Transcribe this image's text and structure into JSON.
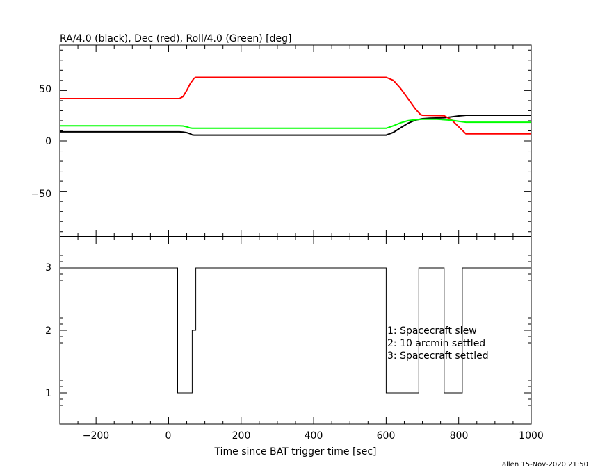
{
  "chart_data": [
    {
      "type": "line",
      "title": "RA/4.0 (black), Dec (red), Roll/4.0 (Green) [deg]",
      "xlim": [
        -300,
        1000
      ],
      "ylim": [
        -95,
        95
      ],
      "yticks": [
        "50",
        "0",
        "−50"
      ],
      "grid": false,
      "series": [
        {
          "color": "#000000",
          "x": [
            -300,
            30,
            40,
            50,
            60,
            65,
            70,
            360,
            600,
            620,
            640,
            660,
            680,
            700,
            720,
            760,
            780,
            800,
            820,
            1000
          ],
          "y": [
            9,
            9,
            8.8,
            8.2,
            7,
            6,
            5.8,
            5.8,
            5.8,
            8.5,
            13,
            17.5,
            20.5,
            22,
            22.5,
            23,
            23.8,
            24.8,
            25.5,
            25.5
          ]
        },
        {
          "color": "#ff0000",
          "x": [
            -300,
            30,
            40,
            50,
            60,
            70,
            75,
            360,
            600,
            620,
            640,
            660,
            680,
            695,
            700,
            760,
            780,
            800,
            820,
            1000
          ],
          "y": [
            42,
            42,
            44,
            50,
            57,
            62,
            63,
            63,
            63,
            60,
            52,
            42,
            32,
            26,
            25.5,
            25,
            21,
            14,
            7,
            7
          ]
        },
        {
          "color": "#00ff00",
          "x": [
            -300,
            30,
            40,
            50,
            60,
            65,
            70,
            360,
            600,
            620,
            640,
            660,
            680,
            700,
            740,
            780,
            800,
            820,
            1000
          ],
          "y": [
            15,
            15,
            14.8,
            14,
            12.8,
            12.5,
            12.5,
            12.5,
            12.5,
            15,
            18,
            20,
            21,
            21.5,
            21.5,
            20.5,
            19.5,
            18.5,
            18.5
          ]
        }
      ]
    },
    {
      "type": "line",
      "xlabel": "Time since BAT trigger time [sec]",
      "xlim": [
        -300,
        1000
      ],
      "ylim": [
        0.5,
        3.5
      ],
      "xticks": [
        "−200",
        "0",
        "200",
        "400",
        "600",
        "800",
        "1000"
      ],
      "yticks": [
        "3",
        "2",
        "1"
      ],
      "series": [
        {
          "color": "#000000",
          "x": [
            -300,
            25,
            25,
            65,
            65,
            75,
            75,
            600,
            600,
            690,
            690,
            760,
            760,
            810,
            810,
            1000
          ],
          "y": [
            3,
            3,
            1,
            1,
            2,
            2,
            3,
            3,
            1,
            1,
            3,
            3,
            1,
            1,
            3,
            3
          ]
        }
      ],
      "annotations": [
        "1: Spacecraft slew",
        "2: 10 arcmin settled",
        "3: Spacecraft settled"
      ]
    }
  ],
  "footer": "allen 15-Nov-2020 21:50"
}
